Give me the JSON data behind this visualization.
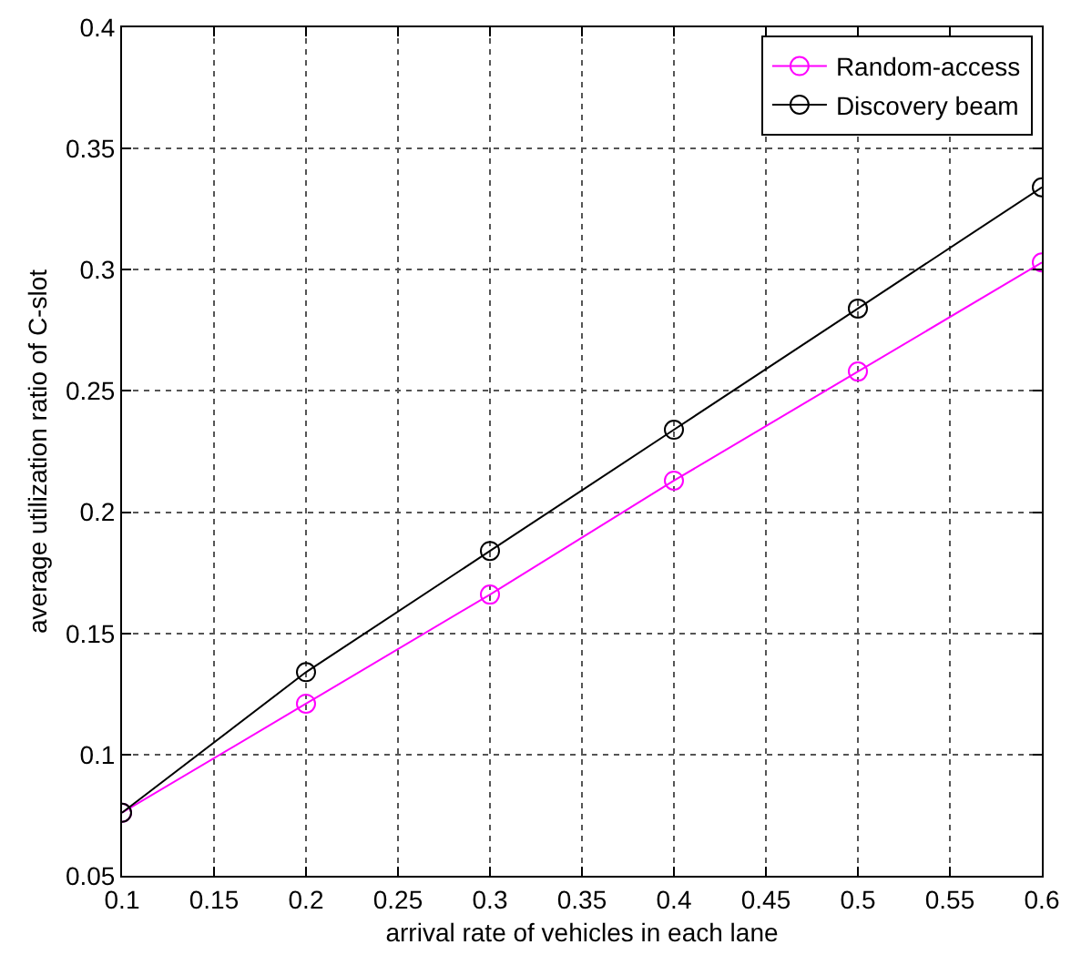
{
  "chart_data": {
    "type": "line",
    "xlabel": "arrival rate of vehicles in each lane",
    "ylabel": "average utilization ratio of C-slot",
    "x": [
      0.1,
      0.2,
      0.3,
      0.4,
      0.5,
      0.6
    ],
    "series": [
      {
        "name": "Random-access",
        "color": "#ff00ff",
        "values": [
          0.076,
          0.121,
          0.166,
          0.213,
          0.258,
          0.303
        ]
      },
      {
        "name": "Discovery beam",
        "color": "#000000",
        "values": [
          0.076,
          0.134,
          0.184,
          0.234,
          0.284,
          0.334
        ]
      }
    ],
    "xlim": [
      0.1,
      0.6
    ],
    "xticks": [
      0.1,
      0.15,
      0.2,
      0.25,
      0.3,
      0.35,
      0.4,
      0.45,
      0.5,
      0.55,
      0.6
    ],
    "ylim": [
      0.05,
      0.4
    ],
    "yticks": [
      0.05,
      0.1,
      0.15,
      0.2,
      0.25,
      0.3,
      0.35,
      0.4
    ],
    "grid": true,
    "legend": "top right",
    "marker": "circle",
    "line_style": "solid"
  }
}
